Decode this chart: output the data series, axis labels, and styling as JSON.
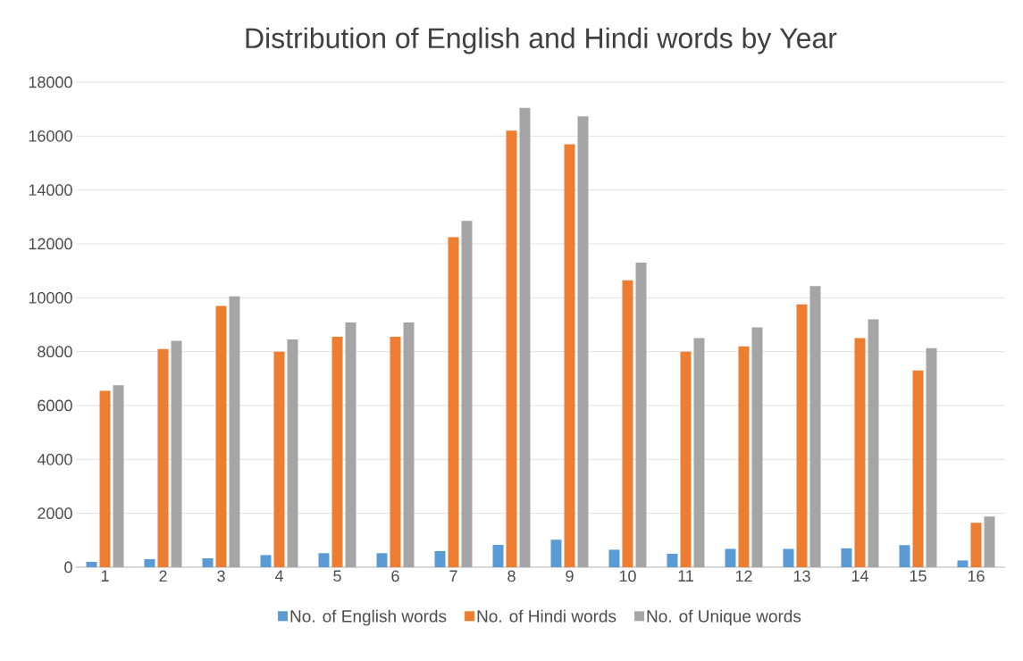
{
  "chart_data": {
    "type": "bar",
    "title": "Distribution of English and Hindi words by Year",
    "categories": [
      "1",
      "2",
      "3",
      "4",
      "5",
      "6",
      "7",
      "8",
      "9",
      "10",
      "11",
      "12",
      "13",
      "14",
      "15",
      "16"
    ],
    "series": [
      {
        "name": "No. of English words",
        "color": "#5b9bd5",
        "values": [
          200,
          300,
          330,
          450,
          520,
          520,
          600,
          830,
          1020,
          650,
          500,
          680,
          680,
          700,
          820,
          250
        ]
      },
      {
        "name": "No. of Hindi words",
        "color": "#ed7d31",
        "values": [
          6550,
          8100,
          9700,
          8000,
          8550,
          8550,
          12250,
          16200,
          15700,
          10650,
          8000,
          8200,
          9750,
          8500,
          7300,
          1650
        ]
      },
      {
        "name": "No. of Unique words",
        "color": "#a5a5a5",
        "values": [
          6750,
          8400,
          10050,
          8450,
          9080,
          9080,
          12850,
          17050,
          16730,
          11300,
          8500,
          8900,
          10430,
          9200,
          8130,
          1880
        ]
      }
    ],
    "ylim": [
      0,
      18000
    ],
    "yticks": [
      0,
      2000,
      4000,
      6000,
      8000,
      10000,
      12000,
      14000,
      16000,
      18000
    ],
    "grid": "y",
    "legend": "bottom"
  }
}
